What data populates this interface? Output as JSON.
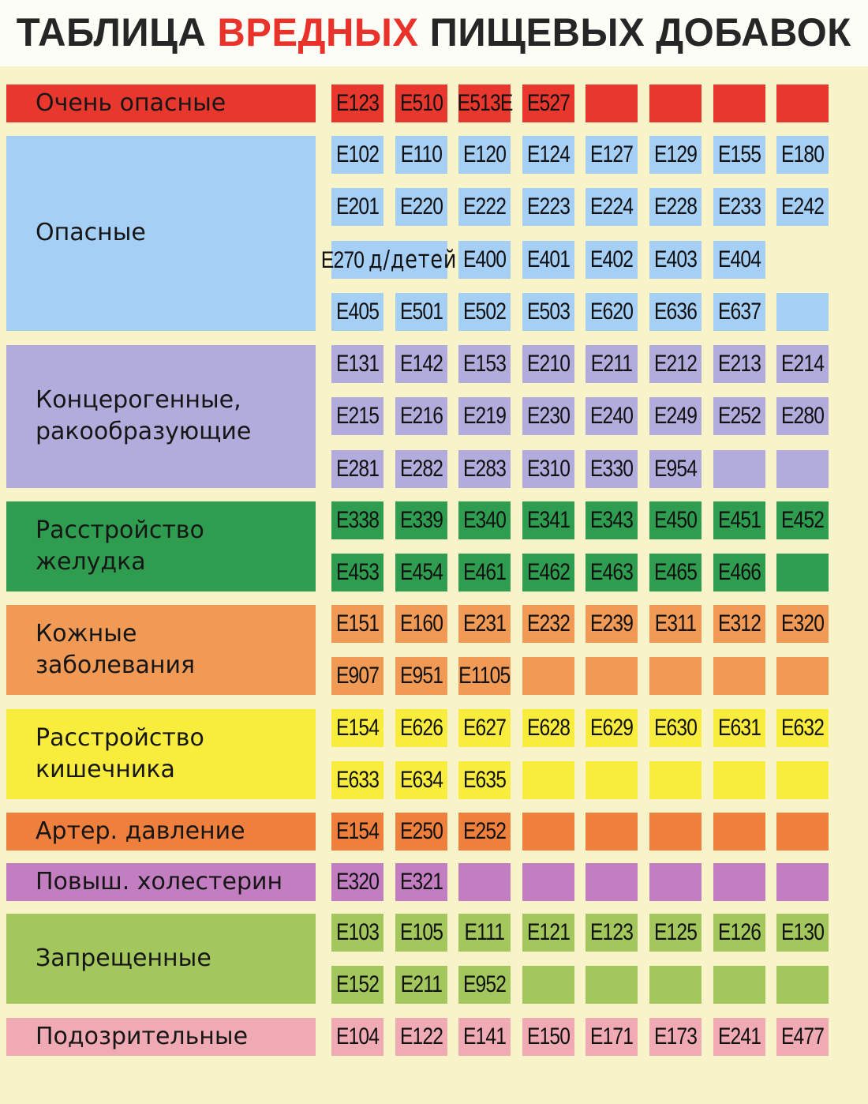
{
  "title": {
    "part1": "ТАБЛИЦА",
    "accent": "ВРЕДНЫХ",
    "part2": "ПИЩЕВЫХ ДОБАВОК",
    "accent_color": "#e8322a"
  },
  "groups": [
    {
      "label": "Очень опасные",
      "color": "#e8372c",
      "rows": [
        [
          "E123",
          "E510",
          "E513E",
          "E527",
          "",
          "",
          "",
          ""
        ]
      ]
    },
    {
      "label": "Опасные",
      "color": "#a5cff5",
      "rows": [
        [
          "E102",
          "E110",
          "E120",
          "E124",
          "E127",
          "E129",
          "E155",
          "E180"
        ],
        [
          "E201",
          "E220",
          "E222",
          "E223",
          "E224",
          "E228",
          "E233",
          "E242"
        ],
        [
          {
            "code": "E270",
            "extra": "д/детей",
            "span": 2
          },
          "E400",
          "E401",
          "E402",
          "E403",
          "E404"
        ],
        [
          "E405",
          "E501",
          "E502",
          "E503",
          "E620",
          "E636",
          "E637",
          ""
        ]
      ]
    },
    {
      "label": "Концерогенные, ракообразующие",
      "color": "#b2acdc",
      "rows": [
        [
          "E131",
          "E142",
          "E153",
          "E210",
          "E211",
          "E212",
          "E213",
          "E214"
        ],
        [
          "E215",
          "E216",
          "E219",
          "E230",
          "E240",
          "E249",
          "E252",
          "E280"
        ],
        [
          "E281",
          "E282",
          "E283",
          "E310",
          "E330",
          "E954",
          "",
          ""
        ]
      ]
    },
    {
      "label": "Расстройство желудка",
      "color": "#2f9d4f",
      "rows": [
        [
          "E338",
          "E339",
          "E340",
          "E341",
          "E343",
          "E450",
          "E451",
          "E452"
        ],
        [
          "E453",
          "E454",
          "E461",
          "E462",
          "E463",
          "E465",
          "E466",
          ""
        ]
      ]
    },
    {
      "label": "Кожные заболевания",
      "color": "#f19a55",
      "rows": [
        [
          "E151",
          "E160",
          "E231",
          "E232",
          "E239",
          "E311",
          "E312",
          "E320"
        ],
        [
          "E907",
          "E951",
          "E1105",
          "",
          "",
          "",
          "",
          ""
        ]
      ]
    },
    {
      "label": "Расстройство кишечника",
      "color": "#f8ec3c",
      "rows": [
        [
          "E154",
          "E626",
          "E627",
          "E628",
          "E629",
          "E630",
          "E631",
          "E632"
        ],
        [
          "E633",
          "E634",
          "E635",
          "",
          "",
          "",
          "",
          ""
        ]
      ]
    },
    {
      "label": "Артер. давление",
      "color": "#ee7f3d",
      "rows": [
        [
          "E154",
          "E250",
          "E252",
          "",
          "",
          "",
          "",
          ""
        ]
      ]
    },
    {
      "label": "Повыш. холестерин",
      "color": "#c37ec1",
      "rows": [
        [
          "E320",
          "E321",
          "",
          "",
          "",
          "",
          "",
          ""
        ]
      ]
    },
    {
      "label": "Запрещенные",
      "color": "#a3c75c",
      "rows": [
        [
          "E103",
          "E105",
          "E111",
          "E121",
          "E123",
          "E125",
          "E126",
          "E130"
        ],
        [
          "E152",
          "E211",
          "E952",
          "",
          "",
          "",
          "",
          ""
        ]
      ]
    },
    {
      "label": "Подозрительные",
      "color": "#f0aab3",
      "rows": [
        [
          "E104",
          "E122",
          "E141",
          "E150",
          "E171",
          "E173",
          "E241",
          "E477"
        ]
      ]
    }
  ]
}
